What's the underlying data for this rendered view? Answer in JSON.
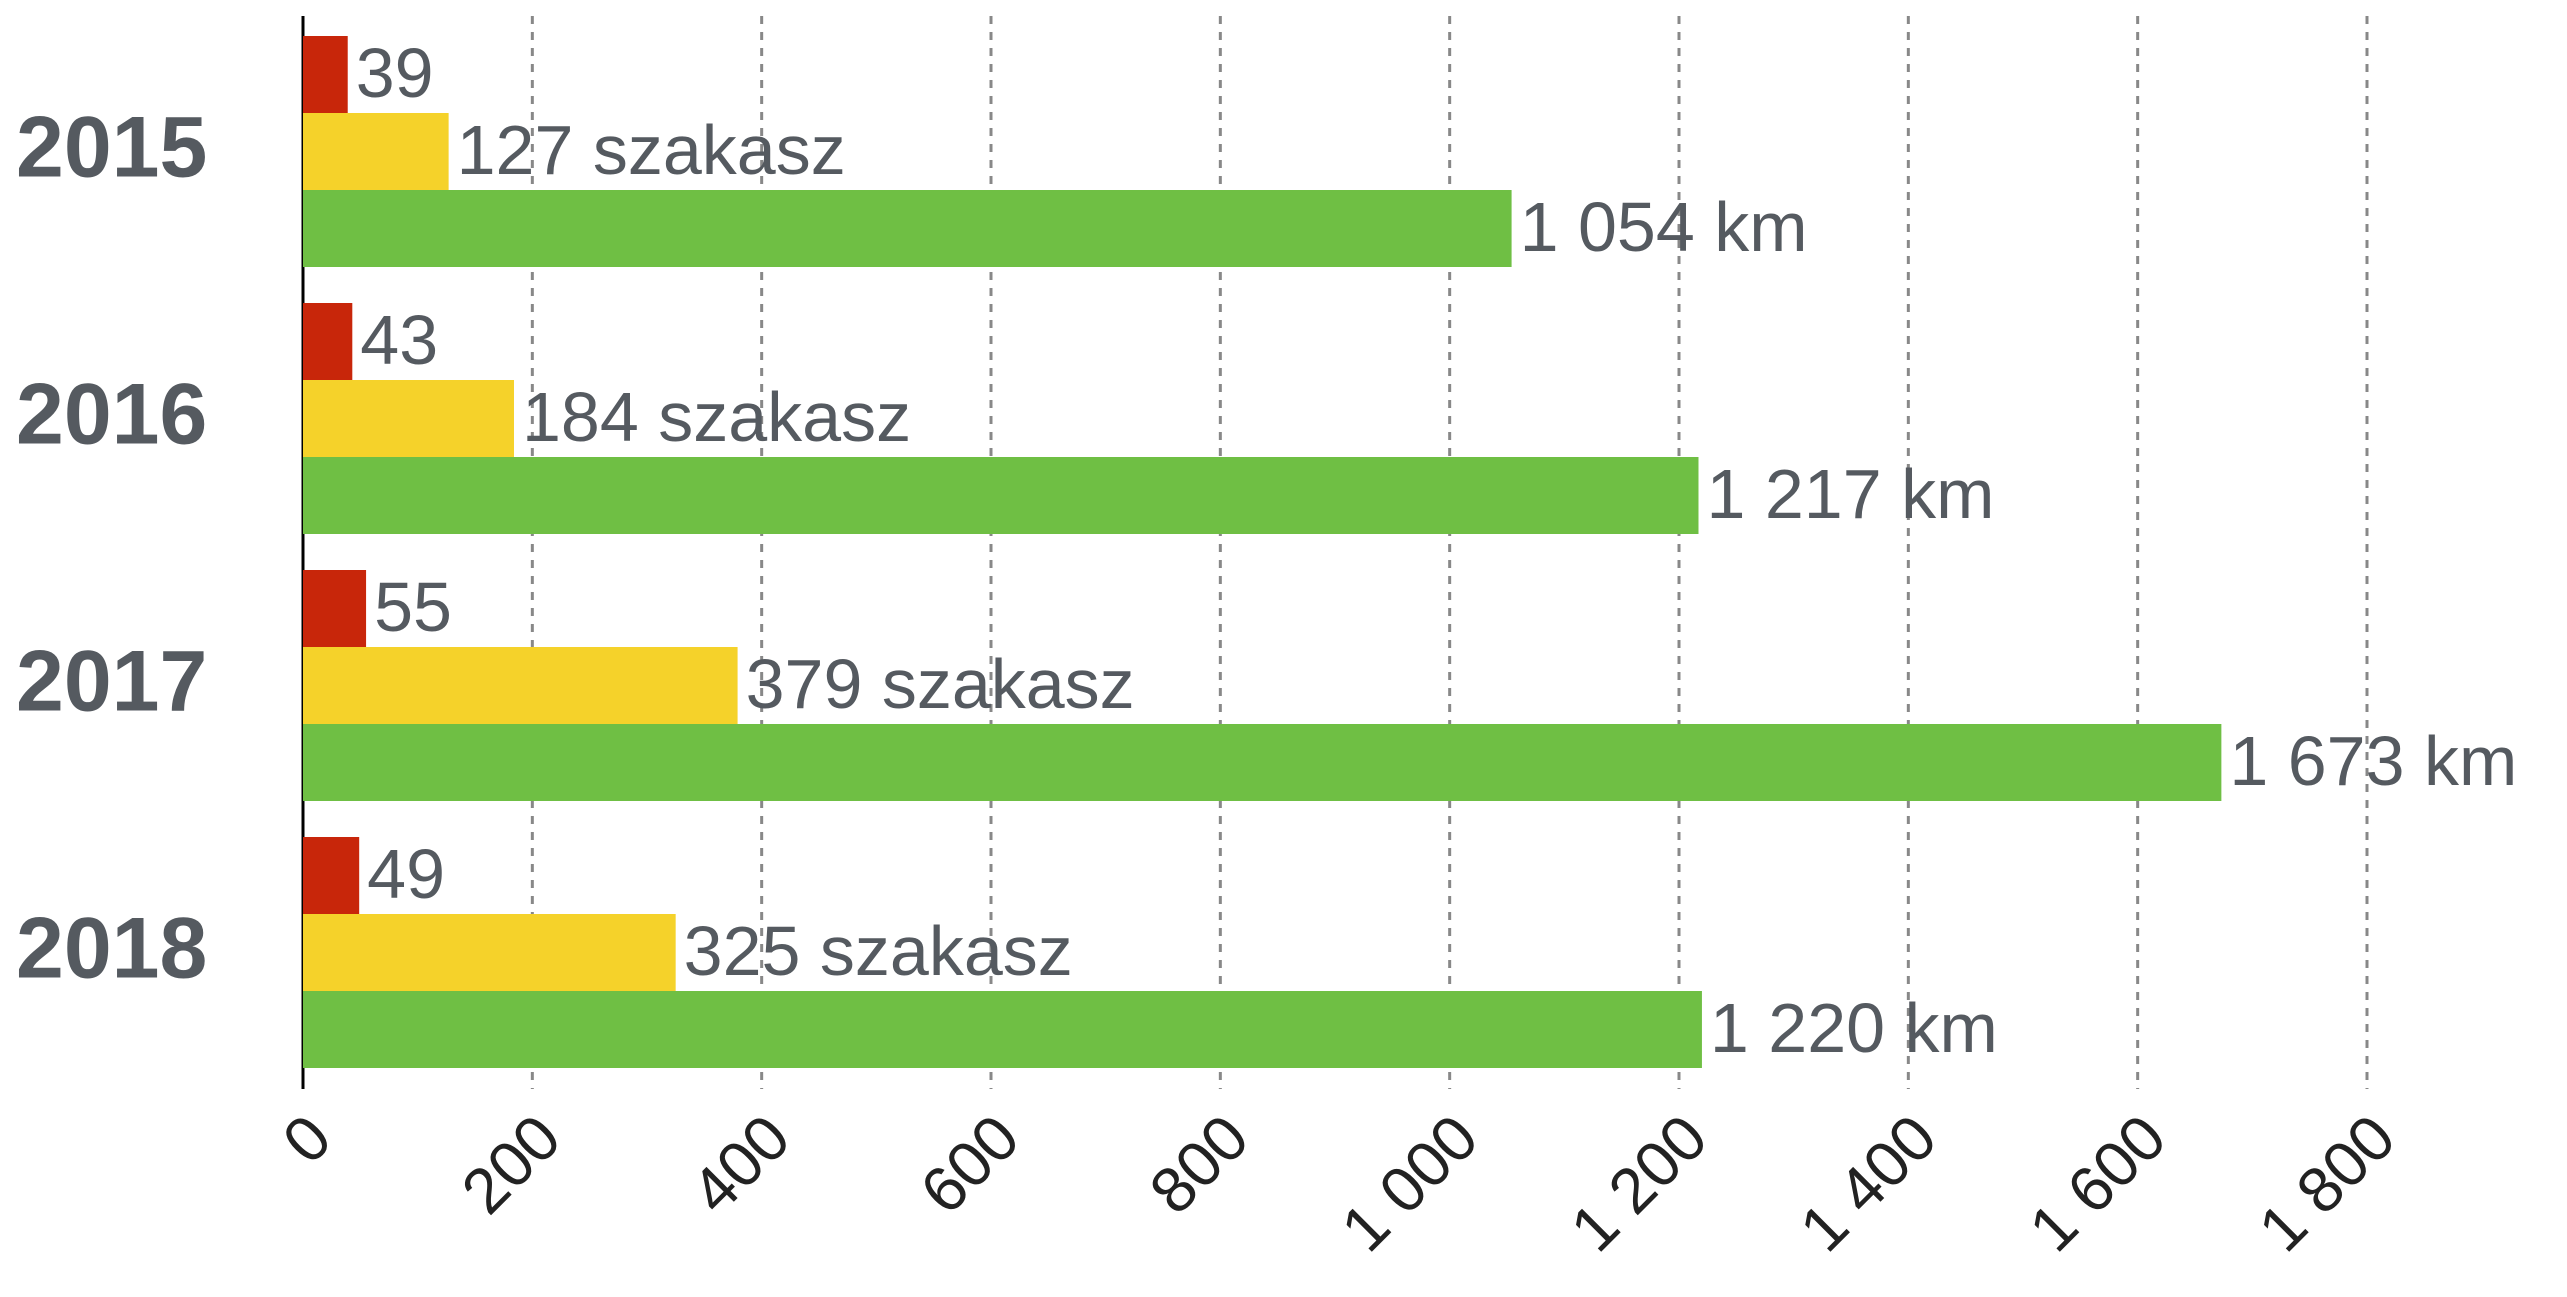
{
  "chart_data": {
    "type": "bar",
    "orientation": "horizontal",
    "categories": [
      "2015",
      "2016",
      "2017",
      "2018"
    ],
    "series": [
      {
        "color": "#c8260a",
        "values": [
          39,
          43,
          55,
          49
        ]
      },
      {
        "color": "#f5d22a",
        "values": [
          127,
          184,
          379,
          325
        ],
        "value_labels": [
          "127 szakasz",
          "184 szakasz",
          "379 szakasz",
          "325 szakasz"
        ]
      },
      {
        "color": "#6fbf44",
        "values": [
          1054,
          1217,
          1673,
          1220
        ],
        "value_labels": [
          "1 054 km",
          "1 217 km",
          "1 673 km",
          "1 220 km"
        ]
      }
    ],
    "xlim": [
      0,
      1800
    ],
    "xticks": [
      0,
      200,
      400,
      600,
      800,
      {
        "value": 1000,
        "label": "1 000"
      },
      {
        "value": 1200,
        "label": "1 200"
      },
      {
        "value": 1400,
        "label": "1 400"
      },
      {
        "value": 1600,
        "label": "1 600"
      },
      {
        "value": 1800,
        "label": "1 800"
      }
    ],
    "grid": true
  }
}
